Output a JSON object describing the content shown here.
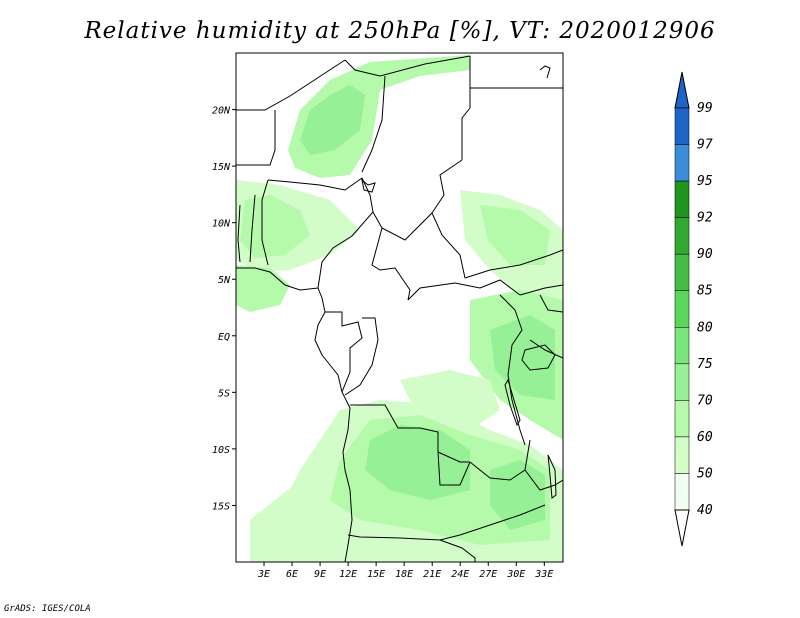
{
  "title": "Relative humidity at 250hPa [%], VT: 2020012906",
  "credit": "GrADS: IGES/COLA",
  "map": {
    "lon_range": [
      0,
      35
    ],
    "lat_range": [
      -20,
      25
    ],
    "lon_ticks": [
      "3E",
      "6E",
      "9E",
      "12E",
      "15E",
      "18E",
      "21E",
      "24E",
      "27E",
      "30E",
      "33E"
    ],
    "lat_ticks": [
      "20N",
      "15N",
      "10N",
      "5N",
      "EQ",
      "5S",
      "10S",
      "15S"
    ]
  },
  "colorbar": {
    "levels": [
      "99",
      "97",
      "95",
      "92",
      "90",
      "85",
      "80",
      "75",
      "70",
      "60",
      "50",
      "40"
    ],
    "colors": [
      "#1e64c8",
      "#3c8cdc",
      "#1e961e",
      "#32aa32",
      "#46be46",
      "#5ad75a",
      "#78e678",
      "#96f096",
      "#b4faaa",
      "#d2fcc8",
      "#f0fff0"
    ]
  },
  "legend_colors": {
    "60": "#d2fcc8",
    "70": "#b4faaa",
    "75": "#96f096",
    "80": "#78e678"
  }
}
